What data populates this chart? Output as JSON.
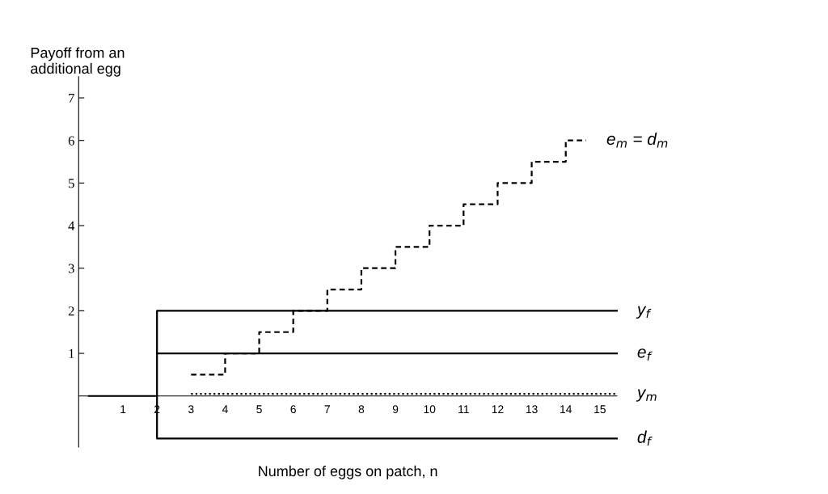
{
  "chart_data": {
    "type": "line",
    "xlabel": "Number of eggs on patch, n",
    "ylabel": "Payoff from an\nadditional egg",
    "xlim": [
      -0.3,
      15.5
    ],
    "ylim": [
      -1.2,
      7.5
    ],
    "xticks": [
      1,
      2,
      3,
      4,
      5,
      6,
      7,
      8,
      9,
      10,
      11,
      12,
      13,
      14,
      15
    ],
    "yticks": [
      1,
      2,
      3,
      4,
      5,
      6,
      7
    ],
    "grid": false,
    "series": [
      {
        "name": "e$_{m}$ = d$_{m}$",
        "type": "step",
        "color": "#000000",
        "line_style": "dashed",
        "x": [
          3,
          4,
          5,
          6,
          7,
          8,
          9,
          10,
          11,
          12,
          13,
          14,
          14.6
        ],
        "values": [
          0.5,
          1,
          1.5,
          2,
          2.5,
          3,
          3.5,
          4,
          4.5,
          5,
          5.5,
          6,
          6
        ]
      },
      {
        "name": "y$_{f}$",
        "color": "#000000",
        "line_style": "solid",
        "x": [
          0,
          2,
          2,
          15.5
        ],
        "values": [
          0,
          0,
          2,
          2
        ]
      },
      {
        "name": "e$_{f}$",
        "color": "#000000",
        "line_style": "solid",
        "x": [
          2,
          15.5
        ],
        "values": [
          1,
          1
        ]
      },
      {
        "name": "y$_{m}$",
        "color": "#000000",
        "line_style": "dotted",
        "x": [
          3,
          15.5
        ],
        "values": [
          0.05,
          0.05
        ]
      },
      {
        "name": "d$_{f}$",
        "color": "#000000",
        "line_style": "solid",
        "x": [
          2,
          2,
          15.5
        ],
        "values": [
          0,
          -1,
          -1
        ]
      }
    ]
  }
}
